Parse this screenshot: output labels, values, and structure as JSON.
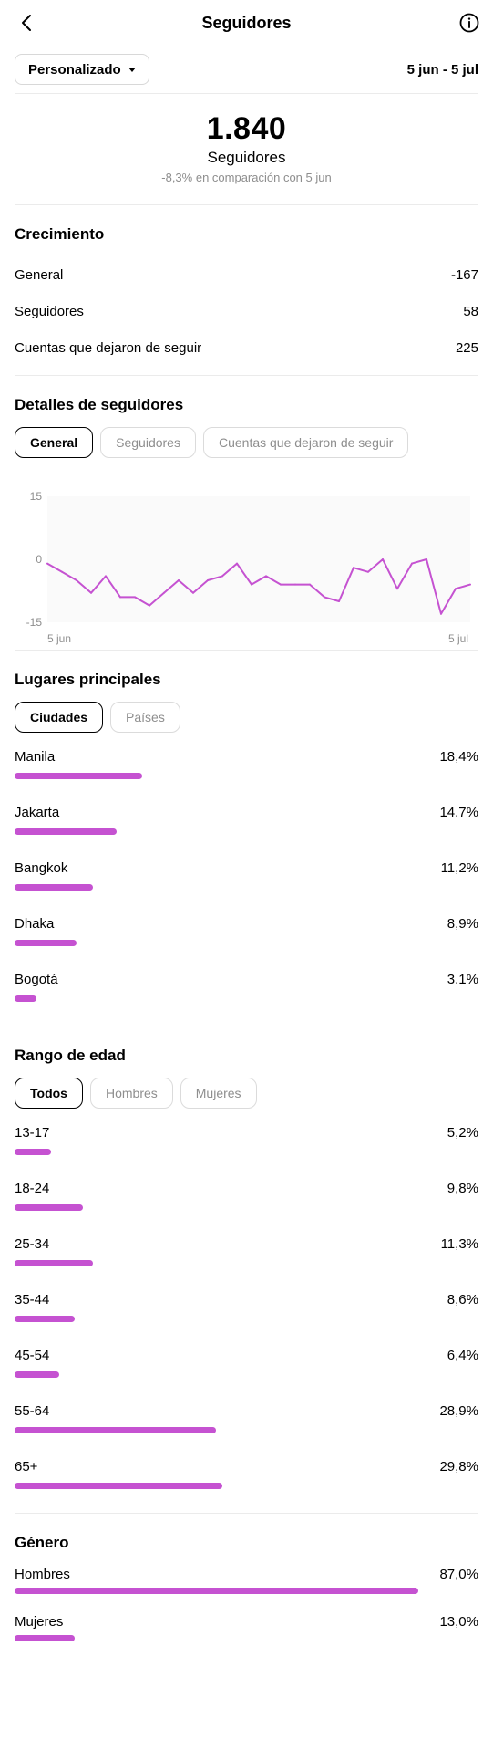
{
  "header": {
    "title": "Seguidores"
  },
  "filter": {
    "dropdown_label": "Personalizado",
    "date_range": "5 jun - 5 jul"
  },
  "summary": {
    "total": "1.840",
    "label": "Seguidores",
    "comparison": "-8,3% en comparación con 5 jun"
  },
  "growth": {
    "title": "Crecimiento",
    "rows": [
      {
        "label": "General",
        "value": "-167"
      },
      {
        "label": "Seguidores",
        "value": "58"
      },
      {
        "label": "Cuentas que dejaron de seguir",
        "value": "225"
      }
    ]
  },
  "details": {
    "title": "Detalles de seguidores",
    "tabs": [
      "General",
      "Seguidores",
      "Cuentas que dejaron de seguir"
    ],
    "active_tab": "General"
  },
  "chart_data": {
    "type": "line",
    "x_labels": [
      "5 jun",
      "5 jul"
    ],
    "y_ticks": [
      "15",
      "0",
      "-15"
    ],
    "ylim": [
      -15,
      15
    ],
    "series_color": "#c552d1",
    "series": [
      {
        "values": [
          -1,
          -3,
          -5,
          -8,
          -4,
          -9,
          -9,
          -11,
          -8,
          -5,
          -8,
          -5,
          -4,
          -1,
          -6,
          -4,
          -6,
          -6,
          -6,
          -9,
          -10,
          -2,
          -3,
          0,
          -7,
          -1,
          0,
          -13,
          -7,
          -6
        ]
      }
    ]
  },
  "places": {
    "title": "Lugares principales",
    "tabs": [
      "Ciudades",
      "Países"
    ],
    "active_tab": "Ciudades",
    "items": [
      {
        "label": "Manila",
        "value": "18,4%",
        "pct": 18.4
      },
      {
        "label": "Jakarta",
        "value": "14,7%",
        "pct": 14.7
      },
      {
        "label": "Bangkok",
        "value": "11,2%",
        "pct": 11.2
      },
      {
        "label": "Dhaka",
        "value": "8,9%",
        "pct": 8.9
      },
      {
        "label": "Bogotá",
        "value": "3,1%",
        "pct": 3.1
      }
    ]
  },
  "age": {
    "title": "Rango de edad",
    "tabs": [
      "Todos",
      "Hombres",
      "Mujeres"
    ],
    "active_tab": "Todos",
    "items": [
      {
        "label": "13-17",
        "value": "5,2%",
        "pct": 5.2
      },
      {
        "label": "18-24",
        "value": "9,8%",
        "pct": 9.8
      },
      {
        "label": "25-34",
        "value": "11,3%",
        "pct": 11.3
      },
      {
        "label": "35-44",
        "value": "8,6%",
        "pct": 8.6
      },
      {
        "label": "45-54",
        "value": "6,4%",
        "pct": 6.4
      },
      {
        "label": "55-64",
        "value": "28,9%",
        "pct": 28.9
      },
      {
        "label": "65+",
        "value": "29,8%",
        "pct": 29.8
      }
    ]
  },
  "gender": {
    "title": "Género",
    "items": [
      {
        "label": "Hombres",
        "value": "87,0%",
        "pct": 87.0
      },
      {
        "label": "Mujeres",
        "value": "13,0%",
        "pct": 13.0
      }
    ]
  },
  "colors": {
    "accent": "#c552d1",
    "muted": "#8e8e8e"
  }
}
